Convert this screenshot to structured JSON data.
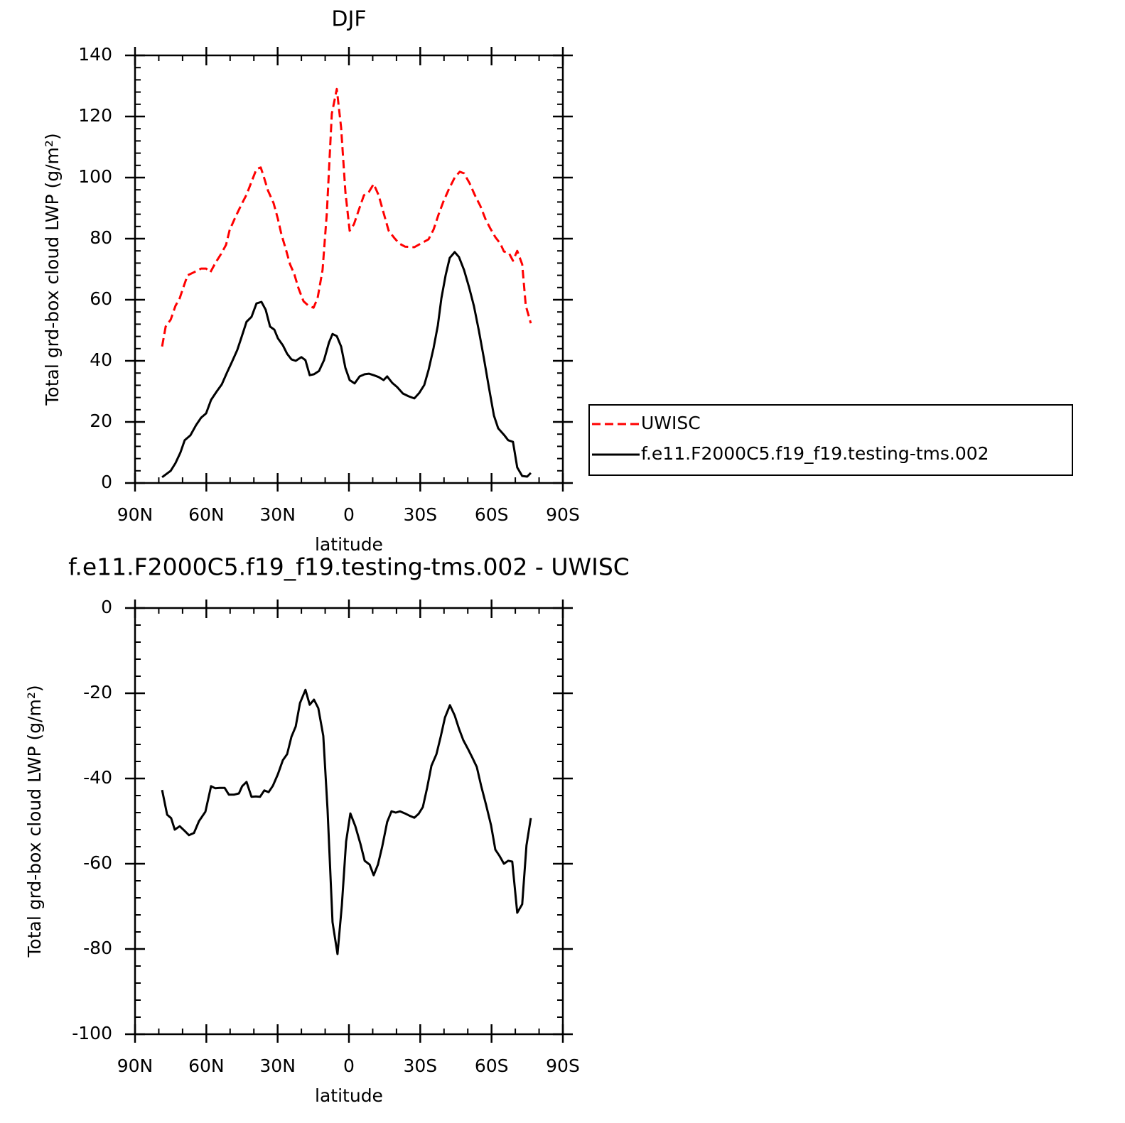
{
  "chart_data": [
    {
      "type": "line",
      "title": "DJF",
      "xlabel": "latitude",
      "ylabel": "Total grd-box cloud LWP (g/m²)",
      "xlim": [
        90,
        -90
      ],
      "xticks": [
        {
          "value": 90,
          "label": "90N"
        },
        {
          "value": 60,
          "label": "60N"
        },
        {
          "value": 30,
          "label": "30N"
        },
        0,
        {
          "value": -30,
          "label": "30S"
        },
        {
          "value": -60,
          "label": "60S"
        },
        {
          "value": -90,
          "label": "90S"
        }
      ],
      "ylim": [
        0,
        140
      ],
      "yticks": [
        0,
        20,
        40,
        60,
        80,
        100,
        120,
        140
      ],
      "legend": "right",
      "series": [
        {
          "name": "UWISC",
          "color": "#ff0000",
          "dashed": true,
          "x": [
            78.6,
            77.1,
            75,
            73,
            71.2,
            69.7,
            67.9,
            65.2,
            62.2,
            60.1,
            58.3,
            56.2,
            53.8,
            51.7,
            50.2,
            47.8,
            45.2,
            43.1,
            41,
            38.9,
            37.1,
            35.9,
            34.1,
            31.7,
            29.9,
            28.4,
            26.6,
            24.8,
            23,
            21.2,
            19.1,
            17.1,
            14.9,
            13.2,
            11.1,
            9.3,
            7.2,
            5.1,
            3.3,
            1.5,
            -0.3,
            -2.1,
            -4.2,
            -6.3,
            -8.4,
            -10.4,
            -12.5,
            -14.6,
            -16.7,
            -19.1,
            -21.2,
            -23.6,
            -27.5,
            -30.2,
            -33.5,
            -35.6,
            -37.7,
            -39.7,
            -42.1,
            -44.5,
            -46.6,
            -48.4,
            -50.8,
            -52.9,
            -55.3,
            -57.4,
            -59.5,
            -61.6,
            -63.7,
            -65.2,
            -67.3,
            -69,
            -70.8,
            -72.9,
            -74.4,
            -76.5
          ],
          "values": [
            44.7,
            51.2,
            53.5,
            58,
            60.5,
            64,
            68,
            69,
            70.2,
            70.2,
            69,
            72,
            75,
            78,
            82.8,
            87,
            91.2,
            94.4,
            98.6,
            102.8,
            103.3,
            100.5,
            95.8,
            91.6,
            86.5,
            81.4,
            76.7,
            71.6,
            68.4,
            63.7,
            59.5,
            58.1,
            57.4,
            60.5,
            69.8,
            88.4,
            120.9,
            129,
            116.3,
            95.3,
            82.6,
            84.7,
            89.5,
            94.2,
            95.3,
            97.9,
            94.2,
            88.4,
            82.6,
            80.2,
            78.4,
            77.4,
            77.2,
            78.4,
            79.8,
            83,
            87.9,
            92.1,
            96.3,
            100,
            101.9,
            101.4,
            98.1,
            94.4,
            90.7,
            86.5,
            83.3,
            80.5,
            78.4,
            75.8,
            75.3,
            72.8,
            76,
            71.6,
            58.1,
            52.3
          ]
        },
        {
          "name": "f.e11.F2000C5.f19_f19.testing-tms.002",
          "color": "#000000",
          "dashed": false,
          "x": [
            78.6,
            75,
            73,
            70.9,
            69.1,
            66.7,
            64.3,
            62.2,
            60.1,
            58,
            55.6,
            53.5,
            51.4,
            49.3,
            47,
            45.2,
            43.1,
            41,
            38.9,
            36.8,
            35,
            33.2,
            31.4,
            29.9,
            27.8,
            26,
            24.2,
            22.4,
            20,
            18.3,
            16.5,
            14.7,
            12.6,
            10.5,
            8.4,
            6.9,
            5.1,
            3.3,
            1.5,
            -0.3,
            -2.4,
            -4.5,
            -6.6,
            -8.4,
            -10.4,
            -12.5,
            -14.6,
            -16.1,
            -18.2,
            -20.3,
            -22.7,
            -25.1,
            -27.5,
            -29.6,
            -31.7,
            -33.5,
            -35.6,
            -37.4,
            -38.9,
            -40.7,
            -42.4,
            -44.5,
            -46.3,
            -48.4,
            -50.5,
            -52.6,
            -54.7,
            -56.8,
            -58.9,
            -61,
            -62.8,
            -65.2,
            -67,
            -69,
            -70.8,
            -72.9,
            -75,
            -76.5
          ],
          "values": [
            1.9,
            4,
            6.5,
            10,
            14,
            15.6,
            19,
            21.4,
            22.8,
            27.2,
            30,
            32.3,
            36,
            39.5,
            43.5,
            47.7,
            52.8,
            54.4,
            58.8,
            59.3,
            56.7,
            51.2,
            50.2,
            47.4,
            45.1,
            42.3,
            40.5,
            40,
            41.2,
            40.2,
            35.3,
            35.6,
            36.7,
            40.2,
            46,
            48.8,
            48.1,
            44.7,
            37.7,
            33.7,
            32.6,
            34.9,
            35.6,
            35.8,
            35.3,
            34.7,
            33.7,
            34.9,
            32.8,
            31.4,
            29.3,
            28.4,
            27.7,
            29.5,
            32.1,
            37,
            44.2,
            51.6,
            60.5,
            68.1,
            73.7,
            75.6,
            74,
            69.8,
            64.2,
            57.9,
            49.8,
            40.7,
            31.2,
            22.1,
            17.9,
            15.8,
            14,
            13.5,
            5.1,
            2.3,
            2.1,
            3.3
          ]
        }
      ]
    },
    {
      "type": "line",
      "title": "f.e11.F2000C5.f19_f19.testing-tms.002 - UWISC",
      "xlabel": "latitude",
      "ylabel": "Total grd-box cloud LWP (g/m²)",
      "xlim": [
        90,
        -90
      ],
      "xticks": [
        {
          "value": 90,
          "label": "90N"
        },
        {
          "value": 60,
          "label": "60N"
        },
        {
          "value": 30,
          "label": "30N"
        },
        0,
        {
          "value": -30,
          "label": "30S"
        },
        {
          "value": -60,
          "label": "60S"
        },
        {
          "value": -90,
          "label": "90S"
        }
      ],
      "ylim": [
        -100,
        0
      ],
      "yticks": [
        -100,
        -80,
        -60,
        -40,
        -20,
        0
      ],
      "series": [
        {
          "color": "#000000",
          "dashed": false,
          "x": [
            78.6,
            76.5,
            74.8,
            73.3,
            71.2,
            69.1,
            67.3,
            65.2,
            63.1,
            60.4,
            58,
            56.2,
            54.4,
            52.3,
            50.5,
            48.4,
            46.3,
            44.9,
            43.1,
            41,
            39.2,
            37.4,
            35.6,
            33.8,
            32,
            29.9,
            27.8,
            26,
            24.2,
            22.4,
            20.6,
            18.3,
            16.5,
            14.7,
            12.9,
            10.8,
            9,
            6.9,
            4.8,
            3,
            1.2,
            -0.6,
            -2.7,
            -4.8,
            -6.6,
            -8.7,
            -10.4,
            -12.2,
            -14,
            -16.1,
            -17.9,
            -19.7,
            -21.5,
            -23.6,
            -25.4,
            -27.5,
            -29.3,
            -31.1,
            -32.9,
            -34.7,
            -36.8,
            -38.6,
            -40.4,
            -42.5,
            -44.5,
            -46.3,
            -48.1,
            -50.2,
            -52,
            -53.8,
            -55.6,
            -57.7,
            -59.8,
            -61.6,
            -63.4,
            -65.2,
            -67,
            -68.7,
            -70.8,
            -72.9,
            -74.7,
            -76.5
          ],
          "values": [
            -42.7,
            -48.5,
            -49.3,
            -52,
            -51.2,
            -52.3,
            -53.3,
            -52.8,
            -50,
            -47.8,
            -41.8,
            -42.3,
            -42.2,
            -42.2,
            -43.8,
            -43.8,
            -43.5,
            -41.8,
            -40.8,
            -44.3,
            -44.2,
            -44.3,
            -42.8,
            -43.2,
            -41.7,
            -39,
            -35.7,
            -34.3,
            -30.2,
            -27.8,
            -22.3,
            -19.2,
            -22.7,
            -21.5,
            -23.5,
            -30,
            -47.3,
            -73.7,
            -81.2,
            -69.8,
            -54.8,
            -48.2,
            -51.2,
            -55.3,
            -59.3,
            -60.2,
            -62.7,
            -60.2,
            -56,
            -50.2,
            -47.7,
            -48,
            -47.7,
            -48.2,
            -48.7,
            -49.2,
            -48.3,
            -46.7,
            -42.2,
            -37,
            -34.3,
            -30.2,
            -25.7,
            -22.8,
            -25.2,
            -28.3,
            -31,
            -33.2,
            -35.2,
            -37.3,
            -41.7,
            -46.2,
            -51,
            -56.7,
            -58.2,
            -60,
            -59.3,
            -59.5,
            -71.5,
            -69.5,
            -55.7,
            -49.3
          ]
        }
      ]
    }
  ]
}
